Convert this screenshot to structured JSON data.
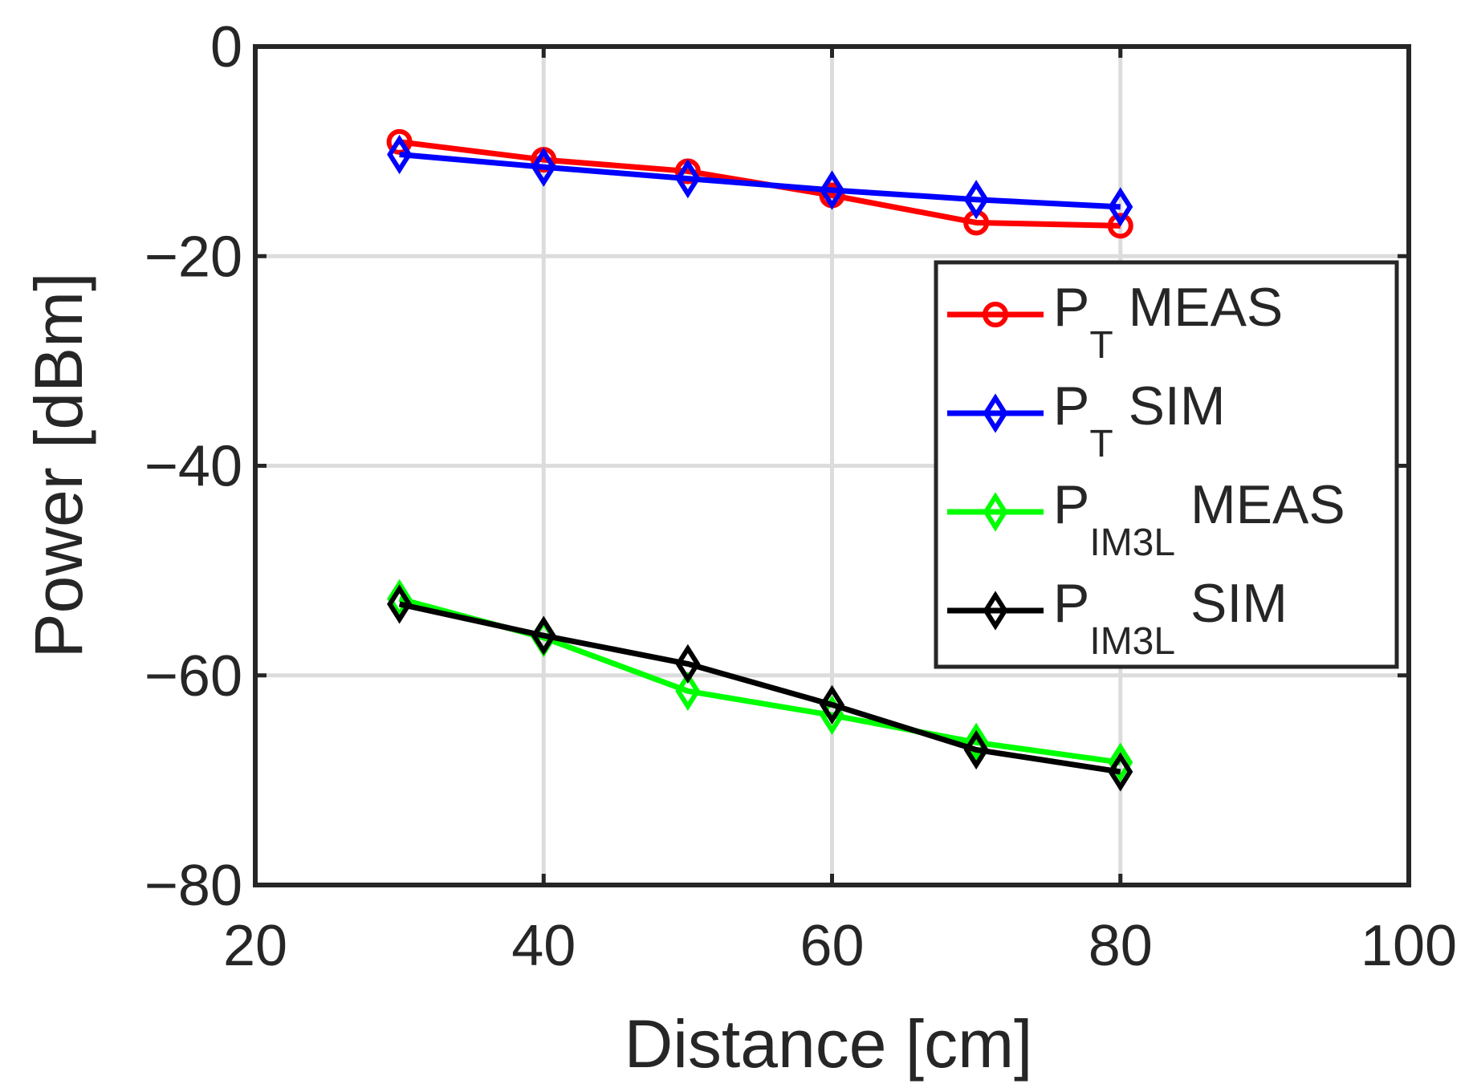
{
  "chart_data": {
    "type": "line",
    "xlabel": "Distance [cm]",
    "ylabel": "Power [dBm]",
    "xlim": [
      20,
      100
    ],
    "ylim": [
      -80,
      0
    ],
    "xticks": [
      20,
      40,
      60,
      80,
      100
    ],
    "yticks": [
      0,
      -20,
      -40,
      -60,
      -80
    ],
    "xtick_labels": [
      "20",
      "40",
      "60",
      "80",
      "100"
    ],
    "ytick_labels": [
      "0",
      "−20",
      "−40",
      "−60",
      "−80"
    ],
    "grid": true,
    "legend_position": "right",
    "x": [
      30,
      40,
      50,
      60,
      70,
      80
    ],
    "series": [
      {
        "name": "PT MEAS",
        "legend_main": "P",
        "legend_sub": "T",
        "legend_rest": " MEAS",
        "color": "#ff0000",
        "marker": "circle",
        "values": [
          -9.1,
          -10.8,
          -11.9,
          -14.2,
          -16.8,
          -17.1
        ]
      },
      {
        "name": "PT SIM",
        "legend_main": "P",
        "legend_sub": "T",
        "legend_rest": " SIM",
        "color": "#0000ff",
        "marker": "diamond",
        "values": [
          -10.3,
          -11.5,
          -12.6,
          -13.7,
          -14.6,
          -15.3
        ]
      },
      {
        "name": "PIM3L MEAS",
        "legend_main": "P",
        "legend_sub": "IM3L",
        "legend_rest": " MEAS",
        "color": "#00ff00",
        "marker": "diamond",
        "values": [
          -52.7,
          -56.4,
          -61.5,
          -63.8,
          -66.4,
          -68.3
        ]
      },
      {
        "name": "PIM3L SIM",
        "legend_main": "P",
        "legend_sub": "IM3L",
        "legend_rest": " SIM",
        "color": "#000000",
        "marker": "diamond",
        "values": [
          -53.2,
          -56.2,
          -58.9,
          -62.8,
          -67.1,
          -69.2
        ]
      }
    ]
  }
}
